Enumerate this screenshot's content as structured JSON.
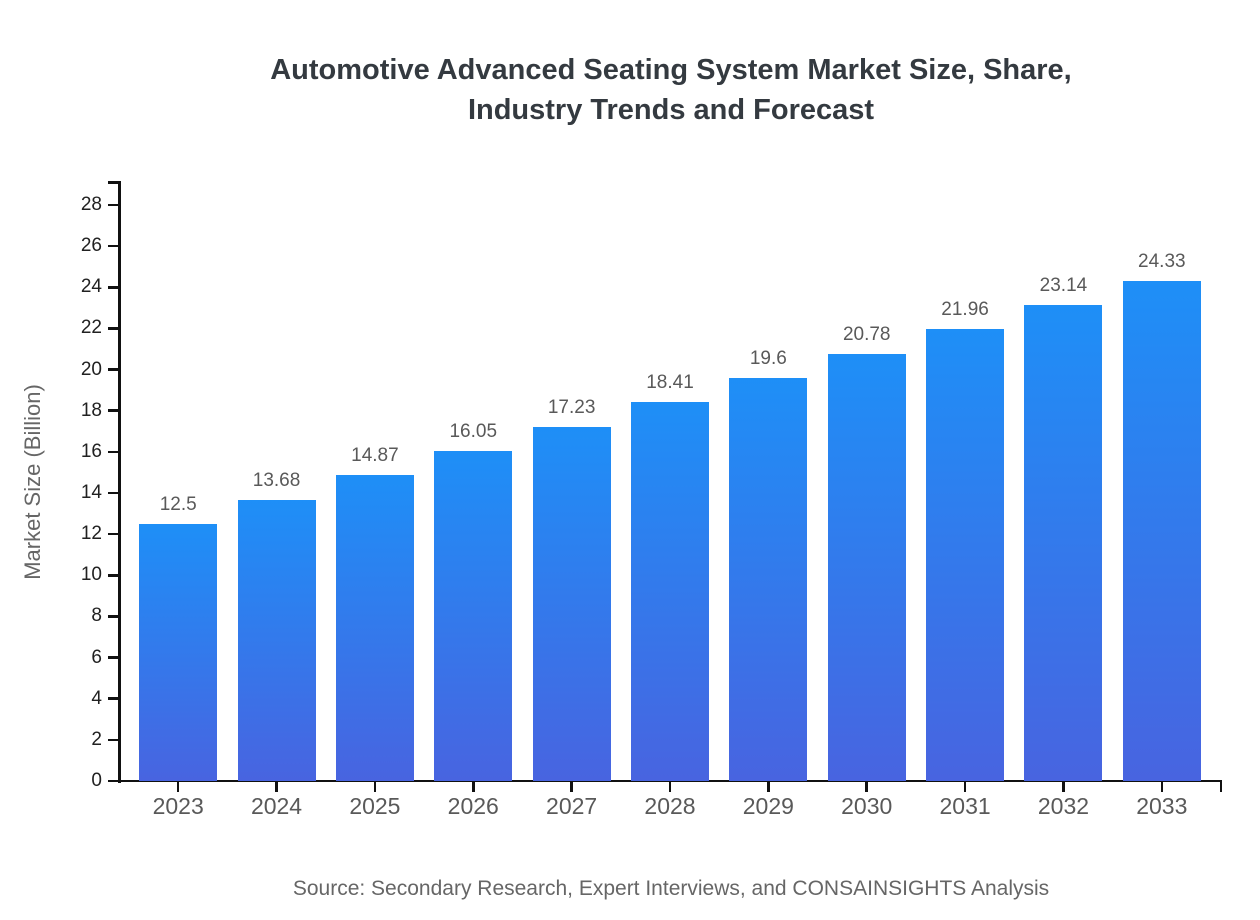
{
  "title": {
    "line1": "Automotive Advanced Seating System Market Size, Share,",
    "line2": "Industry Trends and Forecast"
  },
  "chart_data": {
    "type": "bar",
    "title": "Automotive Advanced Seating System Market Size, Share, Industry Trends and Forecast",
    "categories": [
      "2023",
      "2024",
      "2025",
      "2026",
      "2027",
      "2028",
      "2029",
      "2030",
      "2031",
      "2032",
      "2033"
    ],
    "values": [
      12.5,
      13.68,
      14.87,
      16.05,
      17.23,
      18.41,
      19.6,
      20.78,
      21.96,
      23.14,
      24.33
    ],
    "value_labels": [
      "12.5",
      "13.68",
      "14.87",
      "16.05",
      "17.23",
      "18.41",
      "19.6",
      "20.78",
      "21.96",
      "23.14",
      "24.33"
    ],
    "xlabel": "",
    "ylabel": "Market Size (Billion)",
    "ylim": [
      0,
      28
    ],
    "yticks": [
      0,
      2,
      4,
      6,
      8,
      10,
      12,
      14,
      16,
      18,
      20,
      22,
      24,
      26,
      28
    ],
    "grid": false,
    "legend": "none",
    "bar_color_top": "#1E8FF7",
    "bar_color_bottom": "#4864E0"
  },
  "footer": {
    "source": "Source: Secondary Research, Expert Interviews, and CONSAINSIGHTS Analysis"
  },
  "colors": {
    "title": "#343a40",
    "axis": "#111111",
    "ytick_label": "#212121",
    "xtick_label": "#595959",
    "value_label": "#595959",
    "ylabel": "#666666",
    "source": "#666666",
    "background": "#ffffff"
  }
}
